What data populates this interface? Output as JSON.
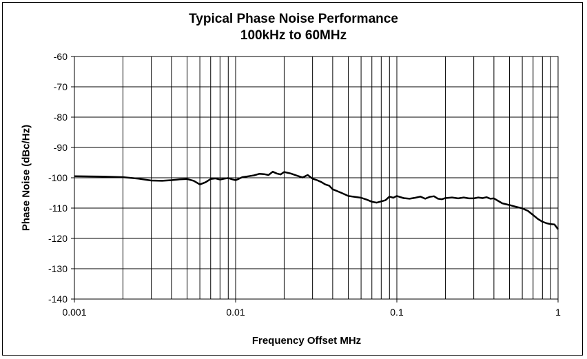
{
  "chart_data": {
    "type": "line",
    "title": "Typical Phase Noise Performance",
    "subtitle": "100kHz to 60MHz",
    "xlabel": "Frequency Offset MHz",
    "ylabel": "Phase Noise (dBc/Hz)",
    "x_scale": "log",
    "xlim": [
      0.001,
      1
    ],
    "ylim": [
      -140,
      -60
    ],
    "grid": true,
    "legend": "none",
    "x_ticks": [
      "0.001",
      "0.01",
      "0.1",
      "1"
    ],
    "y_ticks": [
      "-60",
      "-70",
      "-80",
      "-90",
      "-100",
      "-110",
      "-120",
      "-130",
      "-140"
    ],
    "series": [
      {
        "color": "#000000",
        "x": [
          0.001,
          0.0015,
          0.002,
          0.0025,
          0.003,
          0.0035,
          0.004,
          0.0045,
          0.005,
          0.0055,
          0.006,
          0.0065,
          0.007,
          0.0075,
          0.008,
          0.0085,
          0.009,
          0.0095,
          0.01,
          0.0105,
          0.011,
          0.012,
          0.013,
          0.014,
          0.015,
          0.016,
          0.017,
          0.018,
          0.019,
          0.02,
          0.022,
          0.024,
          0.026,
          0.028,
          0.03,
          0.032,
          0.034,
          0.036,
          0.038,
          0.04,
          0.045,
          0.05,
          0.055,
          0.06,
          0.065,
          0.07,
          0.075,
          0.08,
          0.085,
          0.09,
          0.095,
          0.1,
          0.11,
          0.12,
          0.13,
          0.14,
          0.15,
          0.16,
          0.17,
          0.18,
          0.19,
          0.2,
          0.22,
          0.24,
          0.26,
          0.28,
          0.3,
          0.32,
          0.34,
          0.36,
          0.38,
          0.4,
          0.45,
          0.5,
          0.55,
          0.6,
          0.65,
          0.7,
          0.75,
          0.8,
          0.85,
          0.9,
          0.95,
          1.0
        ],
        "y": [
          -99.5,
          -99.6,
          -99.8,
          -100.3,
          -100.9,
          -101.0,
          -100.8,
          -100.5,
          -100.4,
          -101.0,
          -102.2,
          -101.5,
          -100.4,
          -100.2,
          -100.6,
          -100.3,
          -100.1,
          -100.5,
          -100.8,
          -100.3,
          -99.8,
          -99.5,
          -99.2,
          -98.7,
          -98.8,
          -99.1,
          -98.0,
          -98.6,
          -98.9,
          -98.1,
          -98.6,
          -99.3,
          -99.9,
          -99.1,
          -100.3,
          -100.8,
          -101.4,
          -102.2,
          -102.6,
          -103.8,
          -104.9,
          -106.0,
          -106.3,
          -106.6,
          -107.2,
          -107.9,
          -108.2,
          -107.8,
          -107.4,
          -106.2,
          -106.6,
          -106.0,
          -106.7,
          -106.9,
          -106.6,
          -106.2,
          -106.9,
          -106.3,
          -106.1,
          -106.9,
          -107.1,
          -106.7,
          -106.5,
          -106.8,
          -106.5,
          -106.8,
          -106.8,
          -106.5,
          -106.7,
          -106.4,
          -106.9,
          -106.8,
          -108.4,
          -109.0,
          -109.6,
          -110.1,
          -110.9,
          -112.3,
          -113.6,
          -114.5,
          -115.0,
          -115.3,
          -115.4,
          -117.0
        ]
      }
    ]
  }
}
